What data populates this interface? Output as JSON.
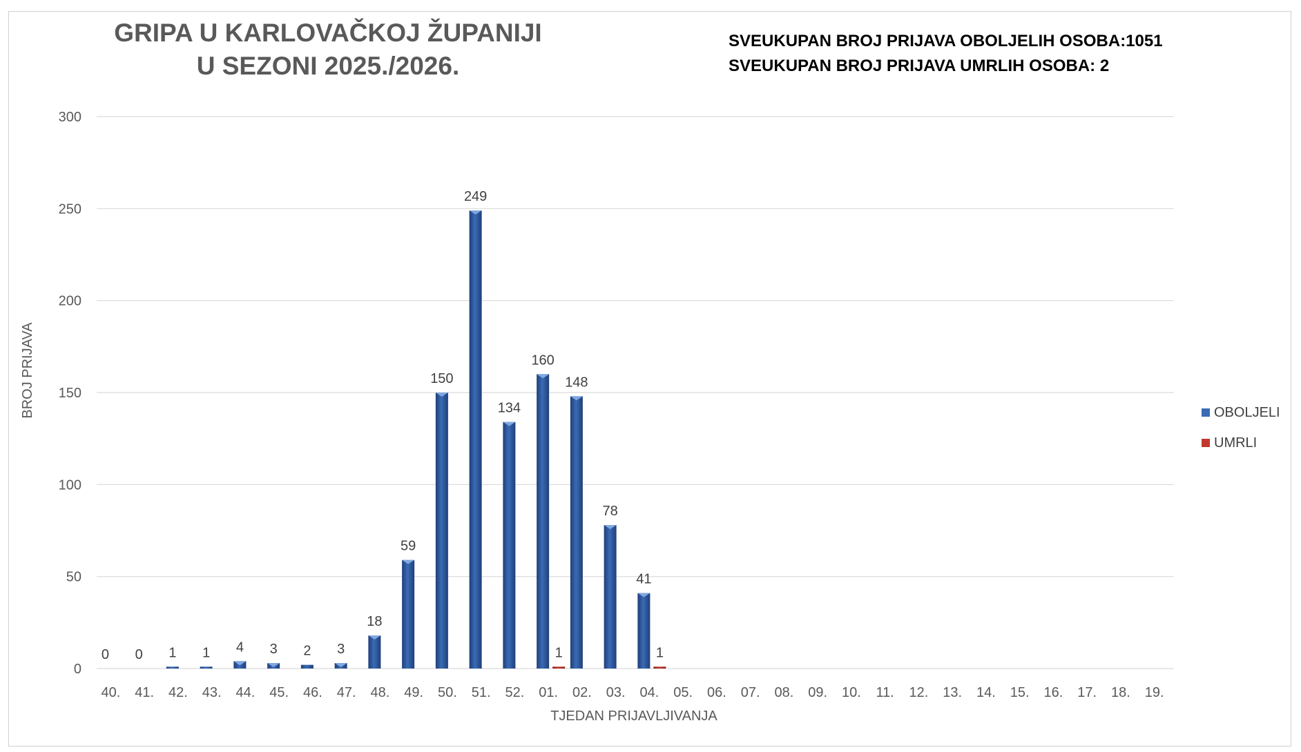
{
  "header": {
    "title_line1": "GRIPA U KARLOVAČKOJ ŽUPANIJI",
    "title_line2": "U SEZONI 2025./2026.",
    "total_sick": "SVEUKUPAN BROJ PRIJAVA OBOLJELIH OSOBA:1051",
    "total_dead": "SVEUKUPAN BROJ PRIJAVA UMRLIH OSOBA: 2"
  },
  "colors": {
    "sick": "#3a6bb5",
    "sick_dark": "#1f3f7a",
    "dead": "#c0392b",
    "grid": "#d9d9d9",
    "axis_text": "#595959"
  },
  "chart_data": {
    "type": "bar",
    "title": "GRIPA U KARLOVAČKOJ ŽUPANIJI U SEZONI 2025./2026.",
    "xlabel": "TJEDAN PRIJAVLJIVANJA",
    "ylabel": "BROJ PRIJAVA",
    "ylim": [
      0,
      300
    ],
    "yticks": [
      0,
      50,
      100,
      150,
      200,
      250,
      300
    ],
    "grid": true,
    "legend_position": "right",
    "categories": [
      "40.",
      "41.",
      "42.",
      "43.",
      "44.",
      "45.",
      "46.",
      "47.",
      "48.",
      "49.",
      "50.",
      "51.",
      "52.",
      "01.",
      "02.",
      "03.",
      "04.",
      "05.",
      "06.",
      "07.",
      "08.",
      "09.",
      "10.",
      "11.",
      "12.",
      "13.",
      "14.",
      "15.",
      "16.",
      "17.",
      "18.",
      "19."
    ],
    "series": [
      {
        "name": "OBOLJELI",
        "values": [
          0,
          0,
          1,
          1,
          4,
          3,
          2,
          3,
          18,
          59,
          150,
          249,
          134,
          160,
          148,
          78,
          41,
          null,
          null,
          null,
          null,
          null,
          null,
          null,
          null,
          null,
          null,
          null,
          null,
          null,
          null,
          null
        ]
      },
      {
        "name": "UMRLI",
        "values": [
          null,
          null,
          null,
          null,
          null,
          null,
          null,
          null,
          null,
          null,
          null,
          null,
          null,
          1,
          null,
          null,
          1,
          null,
          null,
          null,
          null,
          null,
          null,
          null,
          null,
          null,
          null,
          null,
          null,
          null,
          null,
          null
        ]
      }
    ]
  }
}
